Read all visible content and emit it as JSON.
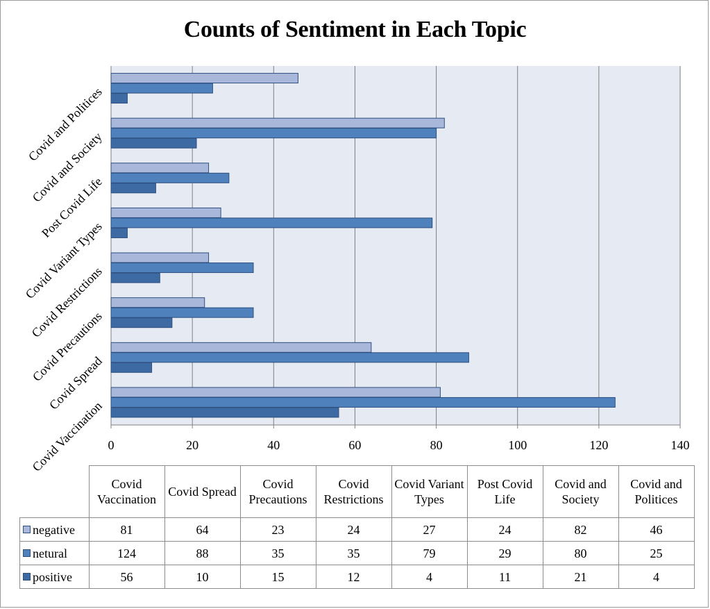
{
  "chart_data": {
    "type": "bar",
    "orientation": "horizontal",
    "title": "Counts of Sentiment in Each Topic",
    "xlabel": "",
    "ylabel": "",
    "xlim": [
      0,
      140
    ],
    "x_ticks": [
      "0",
      "20",
      "40",
      "60",
      "80",
      "100",
      "120",
      "140"
    ],
    "grid": "vertical",
    "legend": "data table below chart",
    "categories": [
      "Covid Vaccination",
      "Covid Spread",
      "Covid Precautions",
      "Covid Restrictions",
      "Covid Variant Types",
      "Post Covid Life",
      "Covid and Society",
      "Covid and Politices"
    ],
    "series": [
      {
        "name": "negative",
        "color": "#a8b7da",
        "values": [
          81,
          64,
          23,
          24,
          27,
          24,
          82,
          46
        ]
      },
      {
        "name": "netural",
        "color": "#4f81bd",
        "values": [
          124,
          88,
          35,
          35,
          79,
          29,
          80,
          25
        ]
      },
      {
        "name": "positive",
        "color": "#3e6aa3",
        "values": [
          56,
          10,
          15,
          12,
          4,
          11,
          21,
          4
        ]
      }
    ]
  },
  "table": {
    "column_headers": [
      "Covid Vaccination",
      "Covid Spread",
      "Covid Precautions",
      "Covid Restrictions",
      "Covid Variant Types",
      "Post Covid Life",
      "Covid and Society",
      "Covid and Politices"
    ]
  }
}
